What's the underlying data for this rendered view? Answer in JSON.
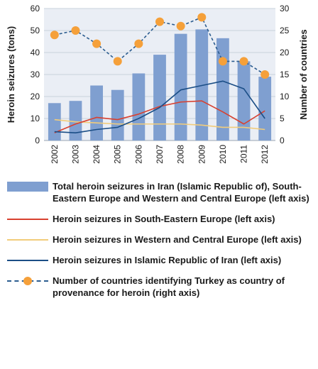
{
  "colors": {
    "bar": "#7f9fd0",
    "see": "#d8402f",
    "wce": "#f2cc7a",
    "iran": "#1b4e86",
    "turkey_line": "#2b5c8f",
    "turkey_marker": "#f5a03a",
    "grid": "#c8d2dc",
    "plot_bg": "#eaeef5"
  },
  "chart_data": {
    "type": "bar",
    "categories": [
      "2002",
      "2003",
      "2004",
      "2005",
      "2006",
      "2007",
      "2008",
      "2009",
      "2010",
      "2011",
      "2012"
    ],
    "ylabel": "Heroin seizures (tons)",
    "y2label": "Number of countries",
    "ylim": [
      0,
      60
    ],
    "y2lim": [
      0,
      30
    ],
    "yticks": [
      "0",
      "10",
      "20",
      "30",
      "40",
      "50",
      "60"
    ],
    "y2ticks": [
      "0",
      "5",
      "10",
      "15",
      "20",
      "25",
      "30"
    ],
    "grid": true,
    "series": [
      {
        "key": "total",
        "type": "bar",
        "axis": "left",
        "values": [
          17,
          18,
          25,
          23,
          30.5,
          39,
          48.5,
          50.5,
          46.5,
          36,
          29
        ]
      },
      {
        "key": "see",
        "type": "line",
        "axis": "left",
        "values": [
          3.5,
          7.5,
          10.5,
          9.5,
          12,
          15.5,
          17.5,
          18,
          13,
          7.5,
          13.5
        ]
      },
      {
        "key": "wce",
        "type": "line",
        "axis": "left",
        "values": [
          9.5,
          8.5,
          8,
          7.5,
          7.5,
          7.5,
          7.5,
          7,
          6,
          6,
          5
        ]
      },
      {
        "key": "iran",
        "type": "line",
        "axis": "left",
        "values": [
          4,
          3.5,
          5,
          6,
          10,
          15,
          23,
          25,
          27,
          23.5,
          10
        ]
      },
      {
        "key": "turkey",
        "type": "dashed-line",
        "axis": "right",
        "values": [
          24,
          25,
          22,
          18,
          22,
          27,
          26,
          28,
          18,
          18,
          15
        ]
      }
    ]
  },
  "legend": [
    {
      "key": "total",
      "label": "Total heroin seizures in Iran (Islamic Republic of), South-Eastern Europe and Western and Central Europe (left axis)"
    },
    {
      "key": "see",
      "label": "Heroin seizures in South-Eastern Europe (left axis)"
    },
    {
      "key": "wce",
      "label": "Heroin seizures in Western and Central Europe (left axis)"
    },
    {
      "key": "iran",
      "label": "Heroin seizures in Islamic Republic of Iran (left axis)"
    },
    {
      "key": "turkey",
      "label": "Number of countries identifying Turkey as country of provenance for heroin (right axis)"
    }
  ]
}
